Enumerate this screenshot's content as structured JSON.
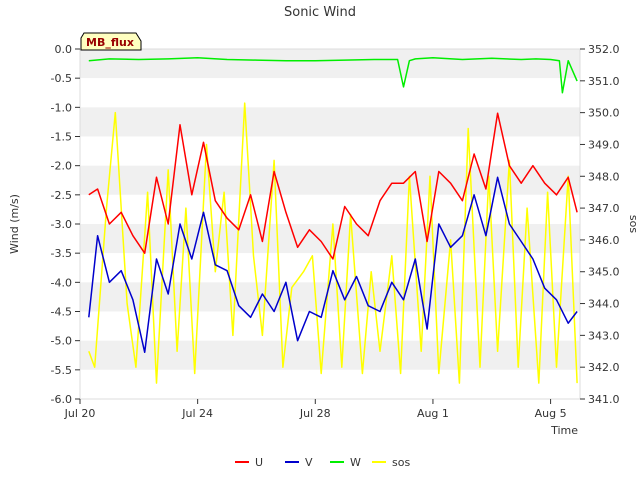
{
  "chart_data": {
    "type": "line",
    "title": "Sonic Wind",
    "badge": "MB_flux",
    "xlabel": "Time",
    "ylabel": "Wind (m/s)",
    "y2label": "sos",
    "xlim": [
      20.0,
      37.0
    ],
    "ylim": [
      -6.0,
      0.0
    ],
    "y2lim": [
      341.0,
      352.0
    ],
    "xticks": [
      {
        "value": 20,
        "label": "Jul 20"
      },
      {
        "value": 24,
        "label": "Jul 24"
      },
      {
        "value": 28,
        "label": "Jul 28"
      },
      {
        "value": 32,
        "label": "Aug 1"
      },
      {
        "value": 36,
        "label": "Aug 5"
      }
    ],
    "yticks": [
      0.0,
      -0.5,
      -1.0,
      -1.5,
      -2.0,
      -2.5,
      -3.0,
      -3.5,
      -4.0,
      -4.5,
      -5.0,
      -5.5,
      -6.0
    ],
    "ytick_labels": [
      "0.0",
      "-0.5",
      "-1.0",
      "-1.5",
      "-2.0",
      "-2.5",
      "-3.0",
      "-3.5",
      "-4.0",
      "-4.5",
      "-5.0",
      "-5.5",
      "-6.0"
    ],
    "y2ticks": [
      341,
      342,
      343,
      344,
      345,
      346,
      347,
      348,
      349,
      350,
      351,
      352
    ],
    "y2tick_labels": [
      "341.0",
      "342.0",
      "343.0",
      "344.0",
      "345.0",
      "346.0",
      "347.0",
      "348.0",
      "349.0",
      "350.0",
      "351.0",
      "352.0"
    ],
    "legend": {
      "position": "bottom-center"
    },
    "colors": {
      "U": "#ff0000",
      "V": "#0000cc",
      "W": "#00ee00",
      "sos": "#ffff00",
      "grid_band": "#f0f0f0"
    },
    "series": [
      {
        "name": "U",
        "axis": "left",
        "x": [
          20.3,
          20.6,
          21.0,
          21.4,
          21.8,
          22.2,
          22.6,
          23.0,
          23.4,
          23.8,
          24.2,
          24.6,
          25.0,
          25.4,
          25.8,
          26.2,
          26.6,
          27.0,
          27.4,
          27.8,
          28.2,
          28.6,
          29.0,
          29.4,
          29.8,
          30.2,
          30.6,
          31.0,
          31.4,
          31.8,
          32.2,
          32.6,
          33.0,
          33.4,
          33.8,
          34.2,
          34.6,
          35.0,
          35.4,
          35.8,
          36.2,
          36.6,
          36.9
        ],
        "values": [
          -2.5,
          -2.4,
          -3.0,
          -2.8,
          -3.2,
          -3.5,
          -2.2,
          -3.0,
          -1.3,
          -2.5,
          -1.6,
          -2.6,
          -2.9,
          -3.1,
          -2.5,
          -3.3,
          -2.1,
          -2.8,
          -3.4,
          -3.1,
          -3.3,
          -3.6,
          -2.7,
          -3.0,
          -3.2,
          -2.6,
          -2.3,
          -2.3,
          -2.1,
          -3.3,
          -2.1,
          -2.3,
          -2.6,
          -1.8,
          -2.4,
          -1.1,
          -2.0,
          -2.3,
          -2.0,
          -2.3,
          -2.5,
          -2.2,
          -2.8
        ]
      },
      {
        "name": "V",
        "axis": "left",
        "x": [
          20.3,
          20.6,
          21.0,
          21.4,
          21.8,
          22.2,
          22.6,
          23.0,
          23.4,
          23.8,
          24.2,
          24.6,
          25.0,
          25.4,
          25.8,
          26.2,
          26.6,
          27.0,
          27.4,
          27.8,
          28.2,
          28.6,
          29.0,
          29.4,
          29.8,
          30.2,
          30.6,
          31.0,
          31.4,
          31.8,
          32.2,
          32.6,
          33.0,
          33.4,
          33.8,
          34.2,
          34.6,
          35.0,
          35.4,
          35.8,
          36.2,
          36.6,
          36.9
        ],
        "values": [
          -4.6,
          -3.2,
          -4.0,
          -3.8,
          -4.3,
          -5.2,
          -3.6,
          -4.2,
          -3.0,
          -3.6,
          -2.8,
          -3.7,
          -3.8,
          -4.4,
          -4.6,
          -4.2,
          -4.5,
          -4.0,
          -5.0,
          -4.5,
          -4.6,
          -3.8,
          -4.3,
          -3.9,
          -4.4,
          -4.5,
          -4.0,
          -4.3,
          -3.6,
          -4.8,
          -3.0,
          -3.4,
          -3.2,
          -2.5,
          -3.2,
          -2.2,
          -3.0,
          -3.3,
          -3.6,
          -4.1,
          -4.3,
          -4.7,
          -4.5
        ]
      },
      {
        "name": "W",
        "axis": "left",
        "x": [
          20.3,
          21.0,
          22.0,
          23.0,
          24.0,
          25.0,
          26.0,
          27.0,
          28.0,
          29.0,
          30.0,
          30.8,
          31.0,
          31.2,
          31.4,
          32.0,
          33.0,
          34.0,
          35.0,
          35.5,
          36.0,
          36.3,
          36.4,
          36.6,
          36.9
        ],
        "values": [
          -0.2,
          -0.17,
          -0.18,
          -0.17,
          -0.15,
          -0.18,
          -0.19,
          -0.2,
          -0.2,
          -0.19,
          -0.18,
          -0.18,
          -0.65,
          -0.2,
          -0.17,
          -0.15,
          -0.18,
          -0.16,
          -0.18,
          -0.17,
          -0.18,
          -0.2,
          -0.75,
          -0.2,
          -0.55
        ]
      }
    ],
    "sos": {
      "name": "sos",
      "axis": "right",
      "x": [
        20.3,
        20.5,
        20.9,
        21.2,
        21.6,
        21.9,
        22.3,
        22.6,
        23.0,
        23.3,
        23.6,
        23.9,
        24.3,
        24.6,
        24.9,
        25.2,
        25.6,
        25.9,
        26.2,
        26.6,
        26.9,
        27.2,
        27.6,
        27.9,
        28.2,
        28.6,
        28.9,
        29.2,
        29.6,
        29.9,
        30.2,
        30.6,
        30.9,
        31.2,
        31.6,
        31.9,
        32.2,
        32.6,
        32.9,
        33.2,
        33.6,
        33.9,
        34.2,
        34.6,
        34.9,
        35.2,
        35.6,
        35.9,
        36.2,
        36.6,
        36.9
      ],
      "values": [
        342.5,
        342.0,
        347.0,
        350.0,
        344.0,
        342.0,
        347.5,
        341.5,
        348.2,
        342.5,
        347.0,
        341.8,
        349.0,
        345.0,
        347.5,
        343.0,
        350.3,
        345.5,
        343.0,
        348.5,
        342.0,
        344.5,
        345.0,
        345.5,
        341.8,
        346.5,
        342.0,
        346.8,
        341.8,
        345.0,
        342.5,
        345.5,
        341.8,
        348.0,
        342.5,
        348.0,
        341.8,
        346.0,
        341.5,
        349.5,
        342.0,
        348.0,
        342.5,
        348.5,
        342.0,
        347.0,
        341.5,
        347.5,
        342.0,
        348.0,
        341.5
      ]
    },
    "legend_labels": [
      "U",
      "V",
      "W",
      "sos"
    ]
  }
}
